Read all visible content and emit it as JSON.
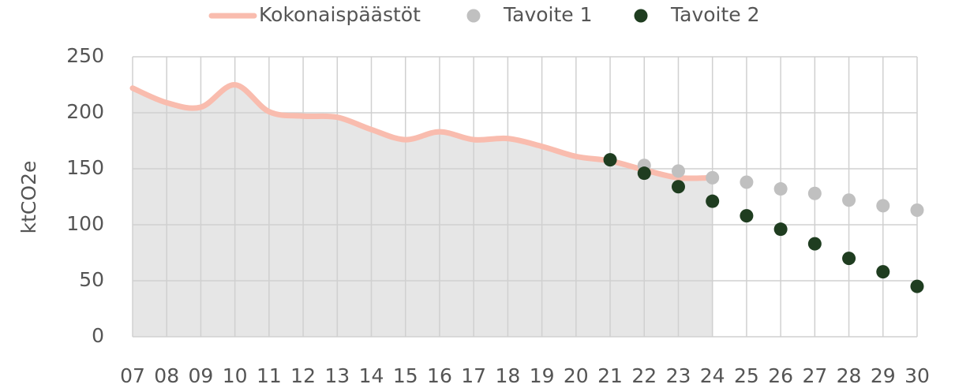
{
  "chart_data": {
    "type": "line",
    "y_label": "ktCO2e",
    "categories": [
      "07",
      "08",
      "09",
      "10",
      "11",
      "12",
      "13",
      "14",
      "15",
      "16",
      "17",
      "18",
      "19",
      "20",
      "21",
      "22",
      "23",
      "24",
      "25",
      "26",
      "27",
      "28",
      "29",
      "30"
    ],
    "series": [
      {
        "name": "Kokonaispäästöt",
        "type": "line",
        "color": "#f9bcae",
        "area_color": "#e6e6e6",
        "values": [
          222,
          209,
          205,
          225,
          201,
          197,
          196,
          185,
          176,
          183,
          176,
          177,
          170,
          161,
          157,
          149,
          142,
          142,
          null,
          null,
          null,
          null,
          null,
          null
        ]
      },
      {
        "name": "Tavoite 1",
        "type": "scatter",
        "color": "#c0c0c0",
        "values": [
          null,
          null,
          null,
          null,
          null,
          null,
          null,
          null,
          null,
          null,
          null,
          null,
          null,
          null,
          null,
          153,
          148,
          142,
          138,
          132,
          128,
          122,
          117,
          113
        ]
      },
      {
        "name": "Tavoite 2",
        "type": "scatter",
        "color": "#1f3d20",
        "values": [
          null,
          null,
          null,
          null,
          null,
          null,
          null,
          null,
          null,
          null,
          null,
          null,
          null,
          null,
          158,
          146,
          134,
          121,
          108,
          96,
          83,
          70,
          58,
          45
        ]
      }
    ],
    "ylim": [
      0,
      250
    ],
    "yticks": [
      0,
      50,
      100,
      150,
      200,
      250
    ],
    "grid": true,
    "legend": "top"
  }
}
